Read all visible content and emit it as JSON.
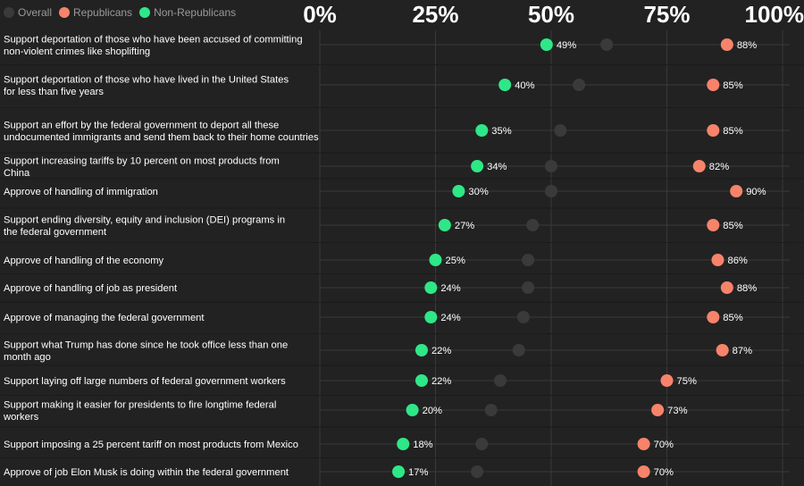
{
  "legend": {
    "items": [
      {
        "key": "overall",
        "label": "Overall",
        "color": "#3a3a3a"
      },
      {
        "key": "republicans",
        "label": "Republicans",
        "color": "#f8836b"
      },
      {
        "key": "non_republicans",
        "label": "Non-Republicans",
        "color": "#2ee887"
      }
    ]
  },
  "chart_data": {
    "type": "scatter",
    "subtype": "dot-plot",
    "xlim": [
      0,
      100
    ],
    "x_ticks": [
      {
        "value": 0,
        "label": "0%"
      },
      {
        "value": 25,
        "label": "25%"
      },
      {
        "value": 50,
        "label": "50%"
      },
      {
        "value": 75,
        "label": "75%"
      },
      {
        "value": 100,
        "label": "100%"
      }
    ],
    "grid": true,
    "legend_position": "top-left",
    "series": [
      {
        "key": "overall",
        "name": "Overall",
        "color": "#3a3a3a"
      },
      {
        "key": "republicans",
        "name": "Republicans",
        "color": "#f8836b"
      },
      {
        "key": "non_republicans",
        "name": "Non-Republicans",
        "color": "#2ee887"
      }
    ],
    "rows": [
      {
        "label": "Support deportation of those who have been accused of committing non-violent crimes like shoplifting",
        "overall": 62,
        "republicans": 88,
        "non_republicans": 49
      },
      {
        "label": "Support deportation of those who have lived in the United States for less than five years",
        "overall": 56,
        "republicans": 85,
        "non_republicans": 40
      },
      {
        "label": "Support an effort by the federal government to deport all these undocumented immigrants and send them back to their home countries",
        "overall": 52,
        "republicans": 85,
        "non_republicans": 35
      },
      {
        "label": "Support increasing tariffs by 10 percent on most products from China",
        "overall": 50,
        "republicans": 82,
        "non_republicans": 34
      },
      {
        "label": "Approve of handling of immigration",
        "overall": 50,
        "republicans": 90,
        "non_republicans": 30
      },
      {
        "label": "Support ending diversity, equity and inclusion (DEI) programs in the federal government",
        "overall": 46,
        "republicans": 85,
        "non_republicans": 27
      },
      {
        "label": "Approve of handling of the economy",
        "overall": 45,
        "republicans": 86,
        "non_republicans": 25
      },
      {
        "label": "Approve of handling of job as president",
        "overall": 45,
        "republicans": 88,
        "non_republicans": 24
      },
      {
        "label": "Approve of managing the federal government",
        "overall": 44,
        "republicans": 85,
        "non_republicans": 24
      },
      {
        "label": "Support what Trump has done since he took office less than one month ago",
        "overall": 43,
        "republicans": 87,
        "non_republicans": 22
      },
      {
        "label": "Support laying off large numbers of federal government workers",
        "overall": 39,
        "republicans": 75,
        "non_republicans": 22
      },
      {
        "label": "Support making it easier for presidents to fire longtime federal workers",
        "overall": 37,
        "republicans": 73,
        "non_republicans": 20
      },
      {
        "label": "Support imposing a 25 percent tariff on most products from Mexico",
        "overall": 35,
        "republicans": 70,
        "non_republicans": 18
      },
      {
        "label": "Approve of job Elon Musk is doing within the federal government",
        "overall": 34,
        "republicans": 70,
        "non_republicans": 17
      }
    ]
  }
}
